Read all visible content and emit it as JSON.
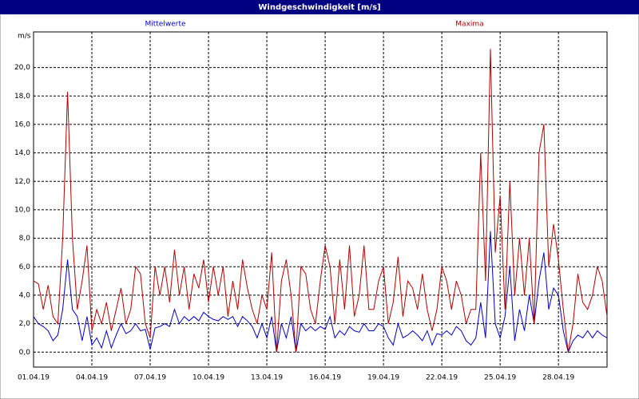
{
  "chart_data": {
    "type": "line",
    "title": "Windgeschwindigkeit [m/s]",
    "y_unit": "m/s",
    "categories": [
      "01.04.19",
      null,
      null,
      null,
      null,
      null,
      null,
      null,
      null,
      null,
      null,
      null,
      "04.04.19",
      null,
      null,
      null,
      null,
      null,
      null,
      null,
      null,
      null,
      null,
      null,
      "07.04.19",
      null,
      null,
      null,
      null,
      null,
      null,
      null,
      null,
      null,
      null,
      null,
      "10.04.19",
      null,
      null,
      null,
      null,
      null,
      null,
      null,
      null,
      null,
      null,
      null,
      "13.04.19",
      null,
      null,
      null,
      null,
      null,
      null,
      null,
      null,
      null,
      null,
      null,
      "16.04.19",
      null,
      null,
      null,
      null,
      null,
      null,
      null,
      null,
      null,
      null,
      null,
      "19.04.19",
      null,
      null,
      null,
      null,
      null,
      null,
      null,
      null,
      null,
      null,
      null,
      "22.04.19",
      null,
      null,
      null,
      null,
      null,
      null,
      null,
      null,
      null,
      null,
      null,
      "25.04.19",
      null,
      null,
      null,
      null,
      null,
      null,
      null,
      null,
      null,
      null,
      null,
      "28.04.19",
      null,
      null,
      null,
      null,
      null,
      null,
      null,
      null,
      null,
      null
    ],
    "series": [
      {
        "name": "Mittelwerte",
        "color": "#0000c8",
        "values": [
          2.5,
          2,
          1.8,
          1.5,
          0.8,
          1.2,
          3,
          6.5,
          3,
          2.5,
          0.8,
          2.5,
          0.5,
          1,
          0.3,
          1.5,
          0.3,
          1.2,
          2,
          1.3,
          1.5,
          2,
          1.5,
          1.6,
          0.2,
          1.7,
          1.8,
          2,
          1.8,
          3,
          2,
          2.5,
          2.2,
          2.5,
          2.2,
          2.8,
          2.5,
          2.3,
          2.2,
          2.5,
          2.3,
          2.5,
          1.8,
          2.5,
          2.2,
          1.8,
          1,
          2,
          1,
          2.5,
          0,
          2,
          1,
          2.5,
          0,
          2,
          1.5,
          1.8,
          1.5,
          1.8,
          1.6,
          2.5,
          1,
          1.5,
          1.2,
          1.8,
          1.5,
          1.4,
          2,
          1.5,
          1.5,
          2,
          1.8,
          1,
          0.5,
          2,
          1,
          1.2,
          1.5,
          1.2,
          0.8,
          1.5,
          0.5,
          1.3,
          1.2,
          1.5,
          1.2,
          1.8,
          1.5,
          0.8,
          0.5,
          1,
          3.5,
          1,
          8.5,
          2,
          1,
          2.5,
          6,
          0.8,
          3,
          1.5,
          4,
          2,
          5,
          7,
          3,
          4.5,
          4,
          1.5,
          0,
          0.8,
          1.2,
          1,
          1.5,
          1,
          1.5,
          1.2,
          1
        ]
      },
      {
        "name": "Maxima",
        "color": "#b40000",
        "values": [
          5,
          4.8,
          3,
          4.7,
          2.5,
          2,
          8,
          18.3,
          8,
          3,
          5,
          7.5,
          1.5,
          3,
          2,
          3.5,
          1.5,
          3,
          4.5,
          2,
          3,
          6,
          5.5,
          2,
          1,
          6,
          4,
          6,
          3.5,
          7.2,
          4,
          6,
          3,
          5.5,
          4.5,
          6.5,
          3.5,
          6,
          4,
          6,
          2.5,
          5,
          3,
          6.5,
          4.5,
          3,
          2,
          4,
          3,
          7,
          0,
          5,
          6.5,
          4,
          0,
          6,
          5.5,
          3,
          2,
          5,
          7.5,
          6,
          2,
          6.5,
          3,
          7.5,
          2.5,
          4,
          7.5,
          3,
          3,
          5,
          6,
          2,
          3.5,
          6.7,
          2.5,
          5,
          4.5,
          3,
          5.5,
          3,
          1.5,
          3,
          6,
          5,
          3,
          5,
          4,
          2,
          3,
          3,
          14,
          5,
          21.3,
          7,
          11,
          3,
          12,
          4,
          8,
          4,
          8,
          2,
          14,
          16,
          6,
          9,
          6.5,
          3,
          0,
          2,
          5.5,
          3.5,
          3,
          4,
          6,
          5,
          2.5
        ]
      }
    ],
    "ylim": [
      -1.05,
      22.5
    ],
    "yticks": [
      {
        "value": 0,
        "label": "0,0"
      },
      {
        "value": 2,
        "label": "2,0"
      },
      {
        "value": 4,
        "label": "4,0"
      },
      {
        "value": 6,
        "label": "6,0"
      },
      {
        "value": 8,
        "label": "8,0"
      },
      {
        "value": 10,
        "label": "10,0"
      },
      {
        "value": 12,
        "label": "12,0"
      },
      {
        "value": 14,
        "label": "14,0"
      },
      {
        "value": 16,
        "label": "16,0"
      },
      {
        "value": 18,
        "label": "18,0"
      },
      {
        "value": 20,
        "label": "20,0"
      }
    ],
    "grid": true
  }
}
